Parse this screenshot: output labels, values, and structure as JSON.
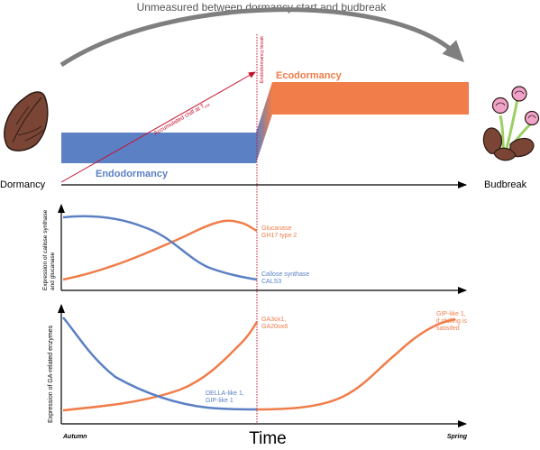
{
  "header": {
    "text": "Unmeasured between dormancy start and budbreak"
  },
  "phases": {
    "left": "Dormancy",
    "right": "Budbreak",
    "endodormancy": "Endodormancy",
    "ecodormancy": "Ecodormancy"
  },
  "annotations": {
    "chill_main": "Accumulated chill at T",
    "chill_sub": "crit",
    "break_line": "Endodormancy break"
  },
  "panel2": {
    "ylabel_1": "Expression of callose synthase",
    "ylabel_2": "and glucanase",
    "glucanase_1": "Glucanase",
    "glucanase_2": "GH17 type 2",
    "callose_1": "Callose synthase",
    "callose_2": "CALS3"
  },
  "panel3": {
    "ylabel": "Expression of GA-related enzymes",
    "ga_1": "GA3ox1,",
    "ga_2": "GA20ox8",
    "gip_1": "GIP-like 1,",
    "gip_2": "if chilling is",
    "gip_3": "satisifed",
    "della_1": "DELLA-like 1,",
    "della_2": "GIP-like 1"
  },
  "xaxis": {
    "start": "Autumn",
    "label": "Time",
    "end": "Spring"
  },
  "colors": {
    "blue": "#5b80c4",
    "orange": "#f07d4a",
    "red": "#c8102e",
    "grey": "#7f7f7f",
    "bud_brown": "#7a4535",
    "flower_pink": "#f0a3c8",
    "stem_green": "#9bcf63"
  }
}
